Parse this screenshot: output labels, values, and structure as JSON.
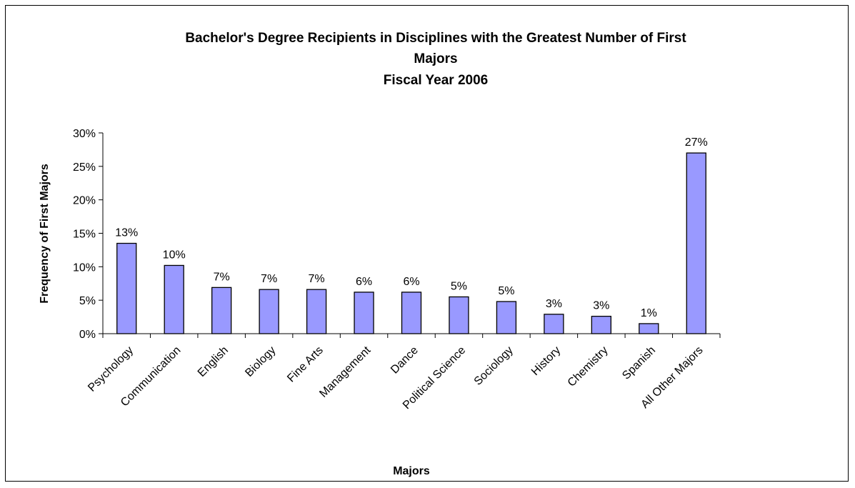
{
  "chart_data": {
    "type": "bar",
    "title_lines": [
      "Bachelor's Degree Recipients in Disciplines with the Greatest Number of First",
      "Majors",
      "Fiscal Year 2006"
    ],
    "xlabel": "Majors",
    "ylabel": "Frequency of First Majors",
    "categories": [
      "Psychology",
      "Communication",
      "English",
      "Biology",
      "Fine Arts",
      "Management",
      "Dance",
      "Political Science",
      "Sociology",
      "History",
      "Chemistry",
      "Spanish",
      "All Other Majors"
    ],
    "values": [
      13.5,
      10.2,
      6.9,
      6.6,
      6.6,
      6.2,
      6.2,
      5.5,
      4.8,
      2.9,
      2.6,
      1.5,
      27.0
    ],
    "data_labels": [
      "13%",
      "10%",
      "7%",
      "7%",
      "7%",
      "6%",
      "6%",
      "5%",
      "5%",
      "3%",
      "3%",
      "1%",
      "27%"
    ],
    "yticks": [
      0,
      5,
      10,
      15,
      20,
      25,
      30
    ],
    "ytick_labels": [
      "0%",
      "5%",
      "10%",
      "15%",
      "20%",
      "25%",
      "30%"
    ],
    "ylim": [
      0,
      30
    ],
    "bar_color": "#9999ff",
    "bar_outline": "#000000",
    "grid": false,
    "legend": "none"
  }
}
